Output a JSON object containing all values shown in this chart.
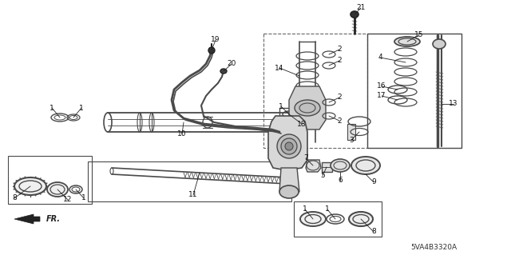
{
  "bg": "#ffffff",
  "lc": "#4a4a4a",
  "dc": "#222222",
  "gc": "#888888",
  "diagram_code": "5VA4B3320A",
  "figsize": [
    6.4,
    3.19
  ],
  "dpi": 100
}
